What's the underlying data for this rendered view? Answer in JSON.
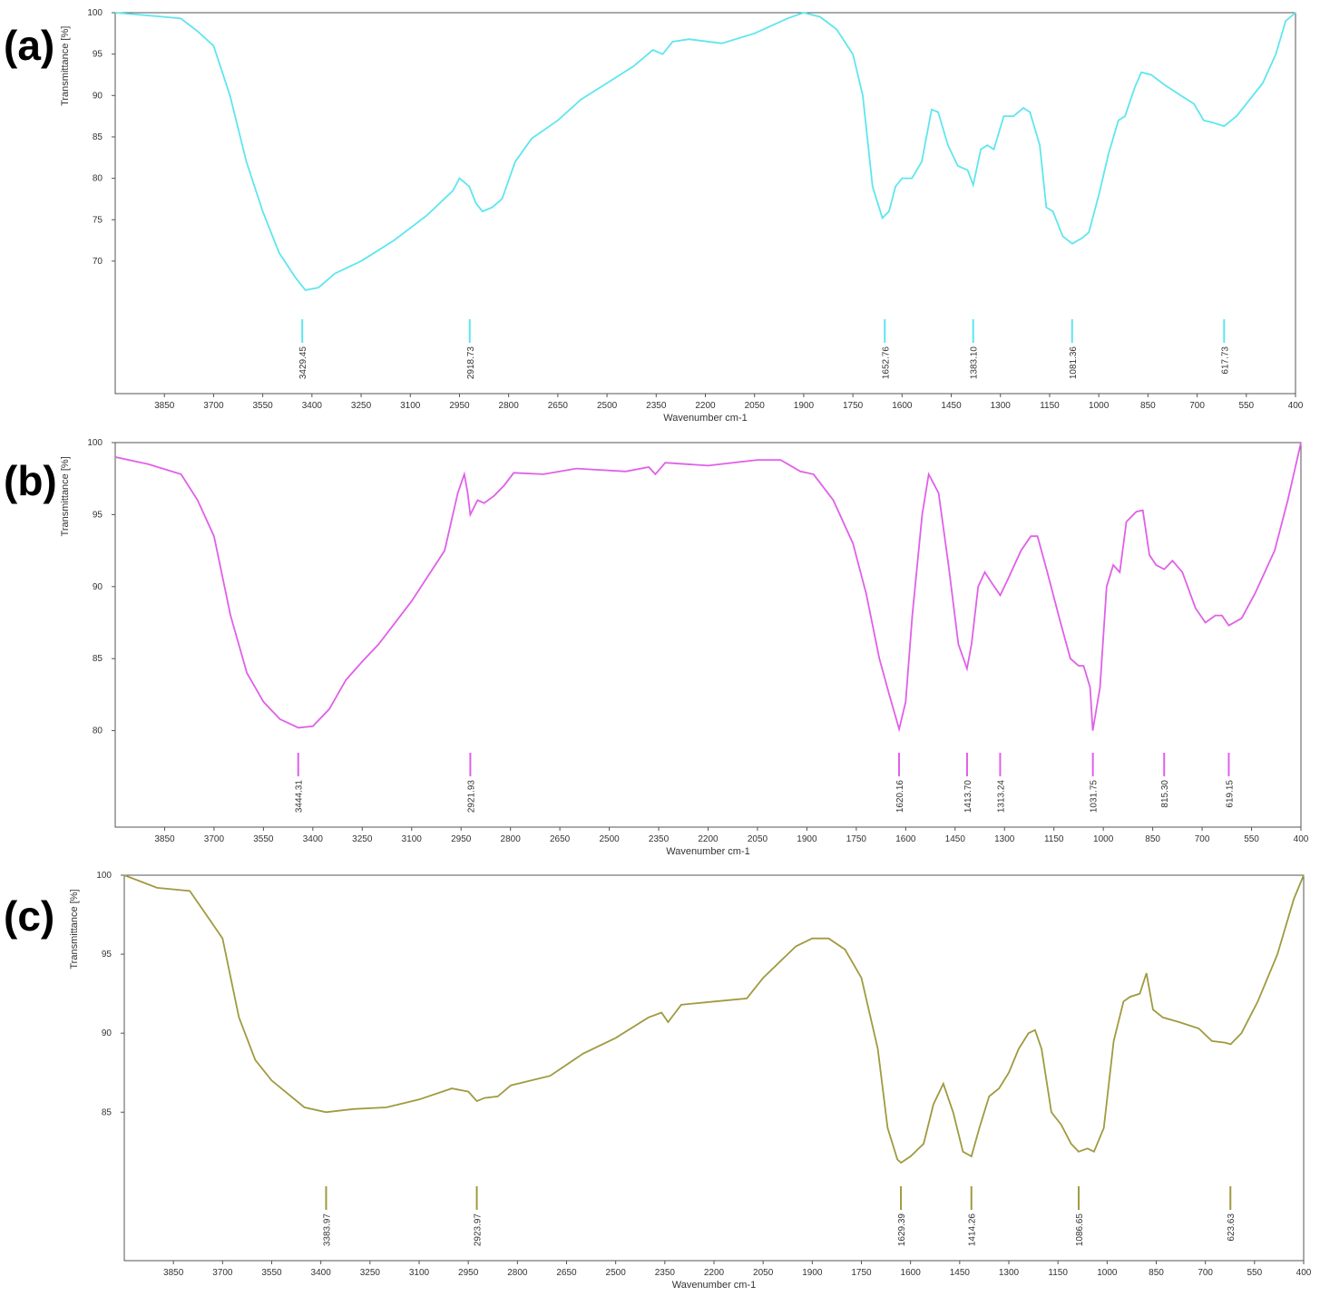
{
  "chart_data": [
    {
      "type": "line",
      "panel_label": "(a)",
      "xlabel": "Wavenumber cm-1",
      "ylabel": "Transmittance [%]",
      "color": "#5ee6ee",
      "xlim": [
        4000,
        400
      ],
      "ylim": [
        54,
        100
      ],
      "xticks": [
        3850,
        3700,
        3550,
        3400,
        3250,
        3100,
        2950,
        2800,
        2650,
        2500,
        2350,
        2200,
        2050,
        1900,
        1750,
        1600,
        1450,
        1300,
        1150,
        1000,
        850,
        700,
        550,
        400
      ],
      "yticks": [
        70,
        75,
        80,
        85,
        90,
        95,
        100
      ],
      "x": [
        4000,
        3850,
        3800,
        3750,
        3700,
        3650,
        3600,
        3550,
        3500,
        3450,
        3420,
        3380,
        3330,
        3250,
        3150,
        3050,
        2970,
        2950,
        2920,
        2900,
        2880,
        2850,
        2820,
        2780,
        2730,
        2650,
        2580,
        2500,
        2420,
        2360,
        2330,
        2300,
        2250,
        2150,
        2050,
        1950,
        1900,
        1850,
        1800,
        1750,
        1720,
        1690,
        1660,
        1640,
        1620,
        1600,
        1570,
        1540,
        1510,
        1490,
        1460,
        1430,
        1400,
        1383,
        1360,
        1340,
        1320,
        1290,
        1260,
        1230,
        1210,
        1180,
        1160,
        1140,
        1110,
        1081,
        1050,
        1030,
        1000,
        970,
        940,
        920,
        890,
        870,
        840,
        800,
        750,
        710,
        680,
        650,
        618,
        580,
        540,
        500,
        460,
        430,
        400
      ],
      "values": [
        100,
        99.5,
        99.3,
        97.8,
        96,
        90,
        82,
        76,
        71,
        68,
        66.5,
        66.8,
        68.5,
        70,
        72.5,
        75.5,
        78.5,
        80,
        79,
        77,
        76,
        76.5,
        77.5,
        82,
        84.8,
        87,
        89.5,
        91.5,
        93.5,
        95.5,
        95,
        96.5,
        96.8,
        96.3,
        97.5,
        99.3,
        100,
        99.5,
        98,
        95,
        90,
        79,
        75.2,
        76,
        79,
        80,
        80,
        82,
        88.3,
        88,
        84,
        81.5,
        81,
        79.2,
        83.5,
        84,
        83.5,
        87.5,
        87.5,
        88.5,
        88,
        84,
        76.5,
        76,
        73,
        72.1,
        72.8,
        73.5,
        78,
        83,
        87,
        87.5,
        91,
        92.8,
        92.5,
        91.3,
        90,
        89,
        87,
        86.7,
        86.3,
        87.5,
        89.5,
        91.5,
        95,
        99,
        100
      ],
      "peaks": [
        3429.45,
        2918.73,
        1652.76,
        {
          "value": 1383.1,
          "label": "1383.10"
        },
        1081.36,
        617.73
      ]
    },
    {
      "type": "line",
      "panel_label": "(b)",
      "xlabel": "Wavenumber cm-1",
      "ylabel": "Transmittance [%]",
      "color": "#e060e8",
      "xlim": [
        4000,
        400
      ],
      "ylim": [
        73.3,
        100
      ],
      "xticks": [
        3850,
        3700,
        3550,
        3400,
        3250,
        3100,
        2950,
        2800,
        2650,
        2500,
        2350,
        2200,
        2050,
        1900,
        1750,
        1600,
        1450,
        1300,
        1150,
        1000,
        850,
        700,
        550,
        400
      ],
      "yticks": [
        80,
        85,
        90,
        95,
        100
      ],
      "x": [
        4000,
        3900,
        3800,
        3750,
        3700,
        3650,
        3600,
        3550,
        3500,
        3444,
        3400,
        3350,
        3300,
        3250,
        3200,
        3100,
        3000,
        2960,
        2940,
        2930,
        2922,
        2900,
        2880,
        2850,
        2820,
        2790,
        2700,
        2600,
        2450,
        2380,
        2360,
        2330,
        2200,
        2050,
        1980,
        1920,
        1880,
        1820,
        1760,
        1720,
        1680,
        1650,
        1620,
        1600,
        1580,
        1550,
        1530,
        1500,
        1470,
        1440,
        1414,
        1400,
        1380,
        1360,
        1340,
        1313,
        1290,
        1250,
        1220,
        1200,
        1170,
        1130,
        1100,
        1075,
        1060,
        1040,
        1032,
        1010,
        990,
        970,
        950,
        930,
        900,
        880,
        860,
        840,
        815,
        790,
        760,
        720,
        690,
        660,
        640,
        619,
        580,
        540,
        480,
        440,
        400
      ],
      "values": [
        99,
        98.5,
        97.8,
        96,
        93.5,
        88,
        84,
        82,
        80.8,
        80.2,
        80.3,
        81.5,
        83.5,
        84.8,
        86,
        89,
        92.5,
        96.5,
        97.8,
        96.5,
        95,
        96,
        95.8,
        96.3,
        97,
        97.9,
        97.8,
        98.2,
        98,
        98.3,
        97.8,
        98.6,
        98.4,
        98.8,
        98.8,
        98,
        97.8,
        96,
        93,
        89.5,
        85,
        82.5,
        80.1,
        82,
        88,
        95,
        97.8,
        96.5,
        91.5,
        86,
        84.3,
        86,
        90,
        91,
        90.3,
        89.4,
        90.5,
        92.5,
        93.5,
        93.5,
        91,
        87.5,
        85,
        84.5,
        84.5,
        83,
        80,
        83,
        90,
        91.5,
        91,
        94.5,
        95.2,
        95.3,
        92.2,
        91.5,
        91.2,
        91.8,
        91,
        88.5,
        87.5,
        88,
        88,
        87.3,
        87.8,
        89.5,
        92.5,
        96,
        100
      ],
      "peaks": [
        3444.31,
        2921.93,
        1620.16,
        {
          "value": 1413.7,
          "label": "1413.70"
        },
        1313.24,
        1031.75,
        {
          "value": 815.3,
          "label": "815.30"
        },
        619.15
      ]
    },
    {
      "type": "line",
      "panel_label": "(c)",
      "xlabel": "Wavenumber cm-1",
      "ylabel": "Transmittance [%]",
      "color": "#a09a40",
      "xlim": [
        4000,
        400
      ],
      "ylim": [
        75.6,
        100
      ],
      "xticks": [
        3850,
        3700,
        3550,
        3400,
        3250,
        3100,
        2950,
        2800,
        2650,
        2500,
        2350,
        2200,
        2050,
        1900,
        1750,
        1600,
        1450,
        1300,
        1150,
        1000,
        850,
        700,
        550,
        400
      ],
      "yticks": [
        85,
        90,
        95,
        100
      ],
      "x": [
        4000,
        3900,
        3800,
        3750,
        3700,
        3650,
        3600,
        3550,
        3450,
        3384,
        3300,
        3200,
        3100,
        3000,
        2950,
        2924,
        2900,
        2860,
        2820,
        2700,
        2600,
        2500,
        2400,
        2360,
        2340,
        2300,
        2200,
        2100,
        2050,
        1950,
        1900,
        1850,
        1800,
        1750,
        1700,
        1670,
        1640,
        1629,
        1600,
        1560,
        1530,
        1500,
        1470,
        1440,
        1414,
        1390,
        1360,
        1330,
        1300,
        1270,
        1240,
        1220,
        1200,
        1170,
        1140,
        1110,
        1087,
        1060,
        1040,
        1010,
        980,
        950,
        930,
        900,
        880,
        860,
        830,
        780,
        720,
        680,
        640,
        623,
        590,
        540,
        480,
        430,
        400
      ],
      "values": [
        100,
        99.2,
        99,
        97.5,
        96,
        91,
        88.3,
        87,
        85.3,
        85,
        85.2,
        85.3,
        85.8,
        86.5,
        86.3,
        85.7,
        85.9,
        86,
        86.7,
        87.3,
        88.7,
        89.7,
        91,
        91.3,
        90.7,
        91.8,
        92,
        92.2,
        93.5,
        95.5,
        96,
        96,
        95.3,
        93.5,
        89,
        84,
        82,
        81.8,
        82.2,
        83,
        85.5,
        86.8,
        85,
        82.5,
        82.2,
        84,
        86,
        86.5,
        87.5,
        89,
        90,
        90.2,
        89,
        85,
        84.2,
        83,
        82.5,
        82.7,
        82.5,
        84,
        89.5,
        92,
        92.3,
        92.5,
        93.8,
        91.5,
        91,
        90.7,
        90.3,
        89.5,
        89.4,
        89.3,
        90,
        92,
        95,
        98.5,
        100
      ],
      "peaks": [
        3383.97,
        2923.97,
        1629.39,
        1414.26,
        1086.65,
        623.63
      ]
    }
  ]
}
